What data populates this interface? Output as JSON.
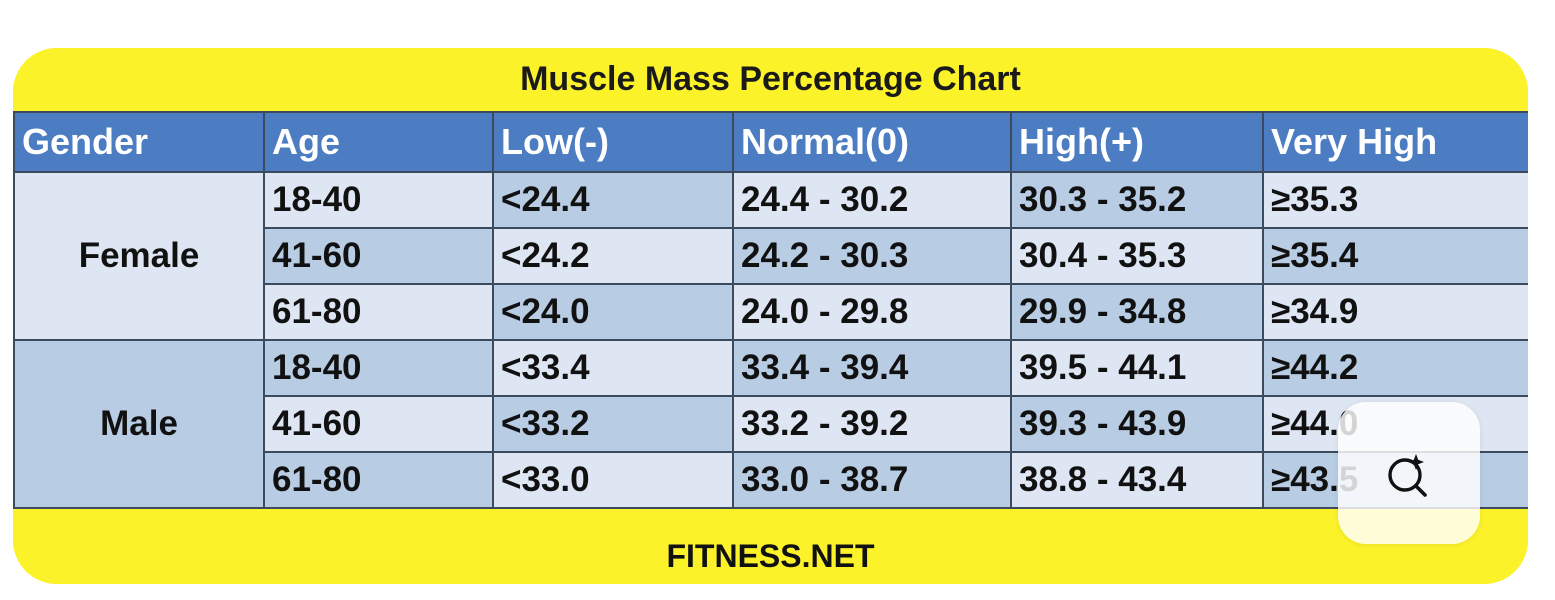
{
  "colors": {
    "band": "#fbf22a",
    "header": "#4c7cc1",
    "light": "#dde6f2",
    "mid": "#b8cce4",
    "border": "#3c4a5e"
  },
  "chart_data": {
    "type": "table",
    "title": "Muscle Mass Percentage Chart",
    "footer": "FITNESS.NET",
    "columns": [
      "Gender",
      "Age",
      "Low(-)",
      "Normal(0)",
      "High(+)",
      "Very High"
    ],
    "groups": [
      {
        "gender": "Female",
        "rows": [
          [
            "18-40",
            "<24.4",
            "24.4 - 30.2",
            "30.3 - 35.2",
            "≥35.3"
          ],
          [
            "41-60",
            "<24.2",
            "24.2 - 30.3",
            "30.4 - 35.3",
            "≥35.4"
          ],
          [
            "61-80",
            "<24.0",
            "24.0 - 29.8",
            "29.9 - 34.8",
            "≥34.9"
          ]
        ]
      },
      {
        "gender": "Male",
        "rows": [
          [
            "18-40",
            "<33.4",
            "33.4 - 39.4",
            "39.5 - 44.1",
            "≥44.2"
          ],
          [
            "41-60",
            "<33.2",
            "33.2 - 39.2",
            "39.3 - 43.9",
            "≥44.0"
          ],
          [
            "61-80",
            "<33.0",
            "33.0 - 38.7",
            "38.8 - 43.4",
            "≥43.5"
          ]
        ]
      }
    ]
  },
  "overlay": {
    "icon": "visual-search-icon"
  }
}
